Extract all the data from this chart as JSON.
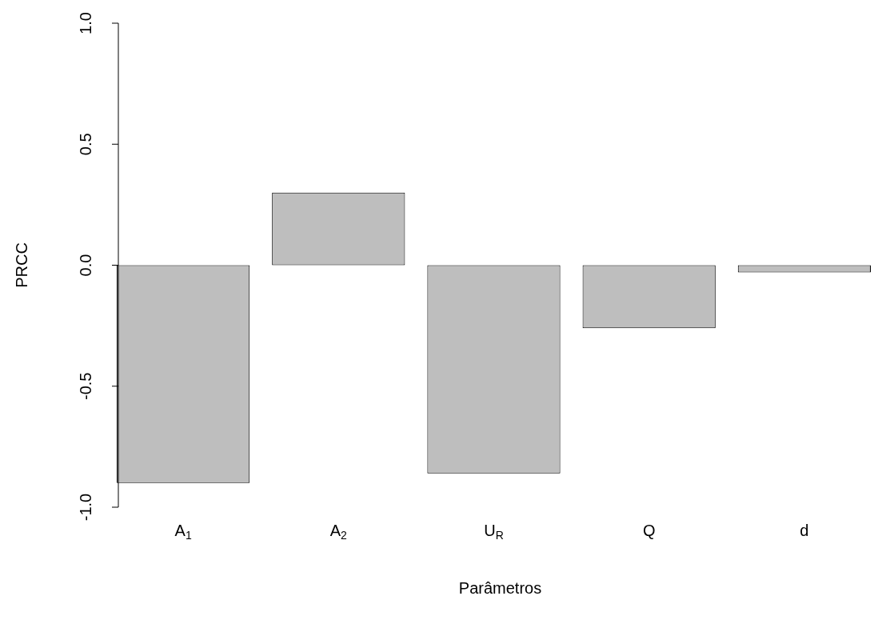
{
  "chart_data": {
    "type": "bar",
    "xlabel": "Parâmetros",
    "ylabel": "PRCC",
    "categories": [
      "A$_{1}$",
      "A$_{2}$",
      "U$_{R}$",
      "Q",
      "d"
    ],
    "values": [
      -0.9,
      0.3,
      -0.86,
      -0.26,
      -0.03
    ],
    "color": "#bebebe",
    "ylim": [
      -1,
      1
    ],
    "yticks": [
      {
        "value": -1,
        "label": "-1.0"
      },
      -0.5,
      {
        "value": 0,
        "label": "0.0"
      },
      0.5,
      {
        "value": 1,
        "label": "1.0"
      }
    ]
  }
}
